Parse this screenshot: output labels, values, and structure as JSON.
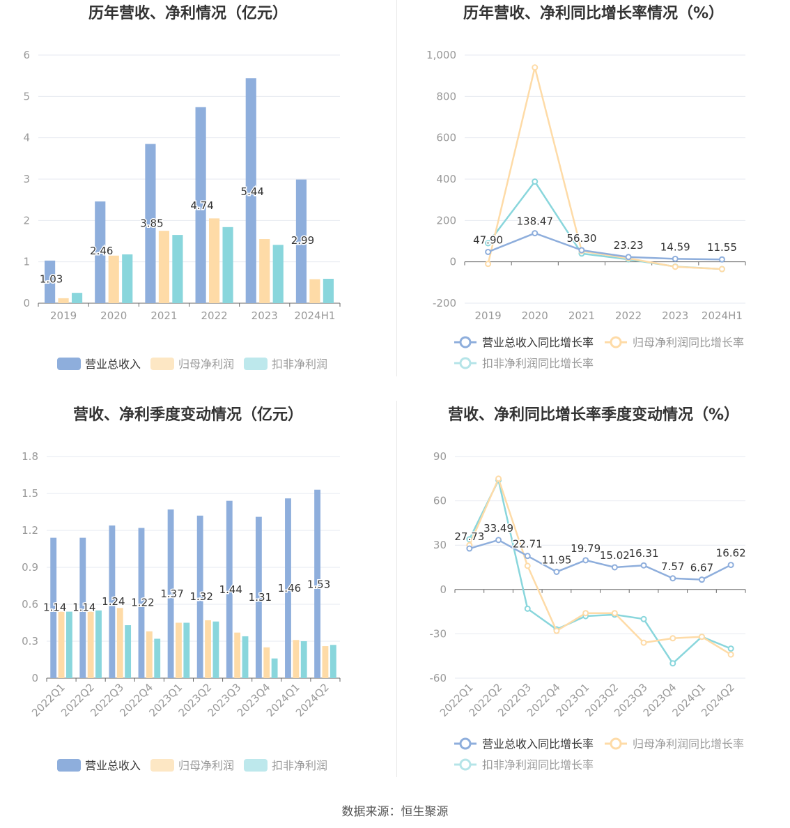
{
  "colors": {
    "revenue": "#8eaedc",
    "net_profit": "#fedba7",
    "deducted_profit": "#89d6dc",
    "axis": "#999999",
    "grid": "#e6e9f0",
    "title": "#333333",
    "label": "#333333"
  },
  "source_text": "数据来源：恒生聚源",
  "chart_data": [
    {
      "id": "annual-bar",
      "type": "bar",
      "title": "历年营收、净利情况（亿元）",
      "categories": [
        "2019",
        "2020",
        "2021",
        "2022",
        "2023",
        "2024H1"
      ],
      "ylim": [
        0,
        6
      ],
      "yticks": [
        0,
        1,
        2,
        3,
        4,
        5,
        6
      ],
      "grid": true,
      "legend_position": "bottom",
      "series": [
        {
          "name": "营业总收入",
          "values": [
            1.03,
            2.46,
            3.85,
            4.74,
            5.44,
            2.99
          ],
          "labels": [
            "1.03",
            "2.46",
            "3.85",
            "4.74",
            "5.44",
            "2.99"
          ]
        },
        {
          "name": "归母净利润",
          "values": [
            0.12,
            1.15,
            1.75,
            2.05,
            1.55,
            0.58
          ]
        },
        {
          "name": "扣非净利润",
          "values": [
            0.25,
            1.18,
            1.65,
            1.84,
            1.41,
            0.59
          ]
        }
      ]
    },
    {
      "id": "annual-growth",
      "type": "line",
      "title": "历年营收、净利同比增长率情况（%）",
      "categories": [
        "2019",
        "2020",
        "2021",
        "2022",
        "2023",
        "2024H1"
      ],
      "ylim": [
        -200,
        1000
      ],
      "yticks": [
        -200,
        0,
        200,
        400,
        600,
        800,
        1000
      ],
      "ytick_labels": [
        "-200",
        "0",
        "200",
        "400",
        "600",
        "800",
        "1,000"
      ],
      "grid": true,
      "legend_position": "bottom",
      "series": [
        {
          "name": "营业总收入同比增长率",
          "values": [
            47.9,
            138.47,
            56.3,
            23.23,
            14.59,
            11.55
          ],
          "labels": [
            "47.90",
            "138.47",
            "56.30",
            "23.23",
            "14.59",
            "11.55"
          ]
        },
        {
          "name": "归母净利润同比增长率",
          "values": [
            -10,
            940,
            52,
            17,
            -24,
            -35
          ]
        },
        {
          "name": "扣非净利润同比增长率",
          "values": [
            90,
            388,
            40,
            12,
            -23,
            -35
          ]
        }
      ]
    },
    {
      "id": "quarterly-bar",
      "type": "bar",
      "title": "营收、净利季度变动情况（亿元）",
      "categories": [
        "2022Q1",
        "2022Q2",
        "2022Q3",
        "2022Q4",
        "2023Q1",
        "2023Q2",
        "2023Q3",
        "2023Q4",
        "2024Q1",
        "2024Q2"
      ],
      "ylim": [
        0,
        1.8
      ],
      "yticks": [
        0,
        0.3,
        0.6,
        0.9,
        1.2,
        1.5,
        1.8
      ],
      "ytick_labels": [
        "0",
        "0.3",
        "0.6",
        "0.9",
        "1.2",
        "1.5",
        "1.8"
      ],
      "grid": true,
      "legend_position": "bottom",
      "series": [
        {
          "name": "营业总收入",
          "values": [
            1.14,
            1.14,
            1.24,
            1.22,
            1.37,
            1.32,
            1.44,
            1.31,
            1.46,
            1.53
          ],
          "labels": [
            "1.14",
            "1.14",
            "1.24",
            "1.22",
            "1.37",
            "1.32",
            "1.44",
            "1.31",
            "1.46",
            "1.53"
          ]
        },
        {
          "name": "归母净利润",
          "values": [
            0.54,
            0.54,
            0.57,
            0.38,
            0.45,
            0.47,
            0.37,
            0.25,
            0.31,
            0.26
          ]
        },
        {
          "name": "扣非净利润",
          "values": [
            0.54,
            0.55,
            0.43,
            0.32,
            0.45,
            0.46,
            0.34,
            0.16,
            0.3,
            0.27
          ]
        }
      ]
    },
    {
      "id": "quarterly-growth",
      "type": "line",
      "title": "营收、净利同比增长率季度变动情况（%）",
      "categories": [
        "2022Q1",
        "2022Q2",
        "2022Q3",
        "2022Q4",
        "2023Q1",
        "2023Q2",
        "2023Q3",
        "2023Q4",
        "2024Q1",
        "2024Q2"
      ],
      "ylim": [
        -60,
        90
      ],
      "yticks": [
        -60,
        -30,
        0,
        30,
        60,
        90
      ],
      "grid": true,
      "legend_position": "bottom",
      "series": [
        {
          "name": "营业总收入同比增长率",
          "values": [
            27.73,
            33.49,
            22.71,
            11.95,
            19.79,
            15.02,
            16.31,
            7.57,
            6.67,
            16.62
          ],
          "labels": [
            "27.73",
            "33.49",
            "22.71",
            "11.95",
            "19.79",
            "15.02",
            "16.31",
            "7.57",
            "6.67",
            "16.62"
          ]
        },
        {
          "name": "归母净利润同比增长率",
          "values": [
            30,
            75,
            16,
            -28,
            -16,
            -16,
            -36,
            -33,
            -32,
            -44
          ]
        },
        {
          "name": "扣非净利润同比增长率",
          "values": [
            34,
            74,
            -13,
            -27,
            -18,
            -17,
            -20,
            -50,
            -32,
            -40
          ]
        }
      ]
    }
  ]
}
